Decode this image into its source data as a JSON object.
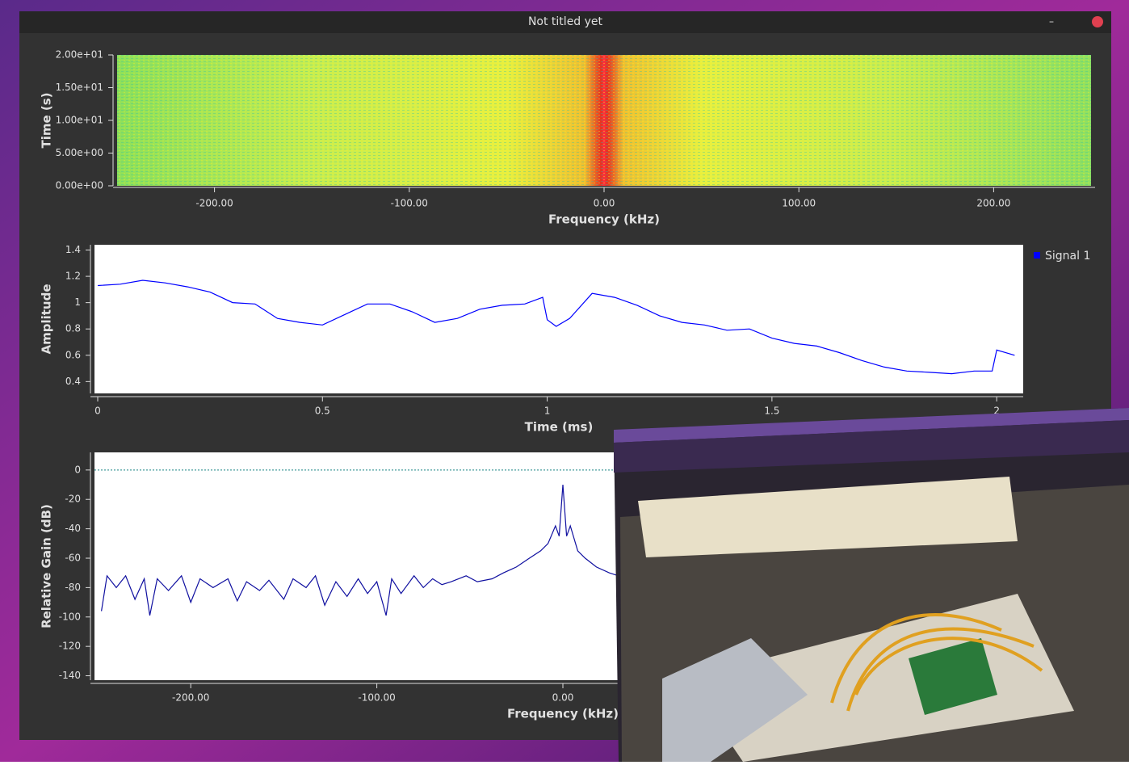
{
  "window": {
    "title": "Not titled yet"
  },
  "chart_data": [
    {
      "type": "waterfall",
      "xlabel": "Frequency (kHz)",
      "ylabel": "Time (s)",
      "xlim": [
        -250,
        250
      ],
      "xticks": [
        {
          "value": -200,
          "label": "-200.00"
        },
        {
          "value": -100,
          "label": "-100.00"
        },
        {
          "value": 0,
          "label": "0.00"
        },
        {
          "value": 100,
          "label": "100.00"
        },
        {
          "value": 200,
          "label": "200.00"
        }
      ],
      "ylim": [
        0,
        20
      ],
      "yticks": [
        {
          "value": 0,
          "label": "0.00e+00"
        },
        {
          "value": 5,
          "label": "5.00e+00"
        },
        {
          "value": 10,
          "label": "1.00e+01"
        },
        {
          "value": 15,
          "label": "1.50e+01"
        },
        {
          "value": 20,
          "label": "2.00e+01"
        }
      ]
    },
    {
      "type": "line",
      "xlabel": "Time (ms)",
      "ylabel": "Amplitude",
      "xlim": [
        0,
        2.05
      ],
      "xticks": [
        0,
        0.5,
        1,
        1.5,
        2
      ],
      "ylim": [
        0.31,
        1.44
      ],
      "yticks": [
        0.4,
        0.6,
        0.8,
        1,
        1.2,
        1.4
      ],
      "x": [
        0,
        0.05,
        0.1,
        0.15,
        0.2,
        0.25,
        0.3,
        0.35,
        0.4,
        0.45,
        0.5,
        0.55,
        0.6,
        0.65,
        0.7,
        0.75,
        0.8,
        0.85,
        0.9,
        0.95,
        0.99,
        1.0,
        1.02,
        1.05,
        1.1,
        1.15,
        1.2,
        1.25,
        1.3,
        1.35,
        1.4,
        1.45,
        1.5,
        1.55,
        1.6,
        1.65,
        1.7,
        1.75,
        1.8,
        1.85,
        1.9,
        1.95,
        1.99,
        2.0,
        2.04
      ],
      "series": [
        {
          "name": "Signal 1",
          "color": "#0000ff",
          "values": [
            1.13,
            1.14,
            1.17,
            1.15,
            1.12,
            1.08,
            1.0,
            0.99,
            0.88,
            0.85,
            0.83,
            0.91,
            0.99,
            0.99,
            0.93,
            0.85,
            0.88,
            0.95,
            0.98,
            0.99,
            1.04,
            0.87,
            0.82,
            0.88,
            1.07,
            1.04,
            0.98,
            0.9,
            0.85,
            0.83,
            0.79,
            0.8,
            0.73,
            0.69,
            0.67,
            0.62,
            0.56,
            0.51,
            0.48,
            0.47,
            0.46,
            0.48,
            0.48,
            0.64,
            0.6
          ]
        }
      ],
      "legend": "right"
    },
    {
      "type": "line",
      "xlabel": "Frequency (kHz)",
      "ylabel": "Relative Gain (dB)",
      "xlim": [
        -250,
        250
      ],
      "xticks": [
        {
          "value": -200,
          "label": "-200.00"
        },
        {
          "value": -100,
          "label": "-100.00"
        },
        {
          "value": 0,
          "label": "0.00"
        }
      ],
      "ylim": [
        -143,
        12
      ],
      "yticks": [
        0,
        -20,
        -40,
        -60,
        -80,
        -100,
        -120,
        -140
      ],
      "reference_line": 0,
      "x": [
        -248,
        -245,
        -240,
        -235,
        -230,
        -225,
        -222,
        -218,
        -212,
        -205,
        -200,
        -195,
        -188,
        -180,
        -175,
        -170,
        -163,
        -158,
        -150,
        -145,
        -138,
        -133,
        -128,
        -122,
        -116,
        -110,
        -105,
        -100,
        -95,
        -92,
        -87,
        -80,
        -75,
        -70,
        -65,
        -60,
        -52,
        -46,
        -38,
        -32,
        -25,
        -18,
        -12,
        -8,
        -4,
        -2,
        0,
        2,
        4,
        8,
        12,
        18,
        25,
        30
      ],
      "series": [
        {
          "color": "#1010a0",
          "values": [
            -96,
            -72,
            -80,
            -72,
            -88,
            -74,
            -99,
            -74,
            -82,
            -72,
            -90,
            -74,
            -80,
            -74,
            -89,
            -76,
            -82,
            -75,
            -88,
            -74,
            -80,
            -72,
            -92,
            -76,
            -86,
            -74,
            -84,
            -76,
            -99,
            -74,
            -84,
            -72,
            -80,
            -74,
            -78,
            -76,
            -72,
            -76,
            -74,
            -70,
            -66,
            -60,
            -55,
            -50,
            -38,
            -45,
            -10,
            -45,
            -38,
            -55,
            -60,
            -66,
            -70,
            -72
          ]
        }
      ]
    }
  ]
}
